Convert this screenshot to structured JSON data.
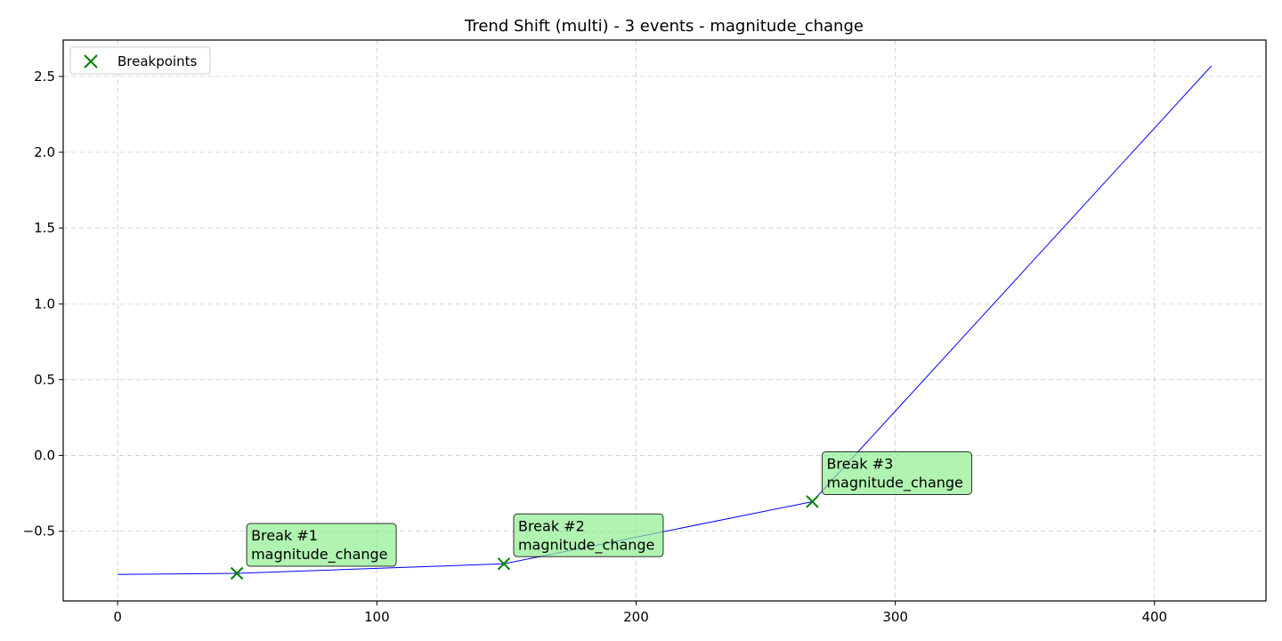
{
  "chart_data": {
    "type": "line",
    "title": "Trend Shift (multi) - 3 events - magnitude_change",
    "xlabel": "",
    "ylabel": "",
    "xlim": [
      -21,
      443
    ],
    "ylim": [
      -0.96,
      2.74
    ],
    "xticks": [
      0,
      100,
      200,
      300,
      400
    ],
    "yticks": [
      -0.5,
      0.0,
      0.5,
      1.0,
      1.5,
      2.0,
      2.5
    ],
    "ytick_labels": [
      "−0.5",
      "0.0",
      "0.5",
      "1.0",
      "1.5",
      "2.0",
      "2.5"
    ],
    "grid": true,
    "legend_position": "top-left",
    "series": [
      {
        "color": "#0000ff",
        "x": [
          0,
          46,
          149,
          268,
          422
        ],
        "y": [
          -0.785,
          -0.778,
          -0.715,
          -0.305,
          2.57
        ]
      }
    ],
    "breakpoints": {
      "name": "Breakpoints",
      "color": "#008000",
      "x": [
        46,
        149,
        268
      ],
      "y": [
        -0.778,
        -0.715,
        -0.305
      ]
    },
    "annotations": [
      {
        "line1": "Break #1",
        "line2": "magnitude_change",
        "x": 46,
        "y": -0.778
      },
      {
        "line1": "Break #2",
        "line2": "magnitude_change",
        "x": 149,
        "y": -0.715
      },
      {
        "line1": "Break #3",
        "line2": "magnitude_change",
        "x": 268,
        "y": -0.305
      }
    ],
    "annotation_box_color": "#90ee90"
  }
}
